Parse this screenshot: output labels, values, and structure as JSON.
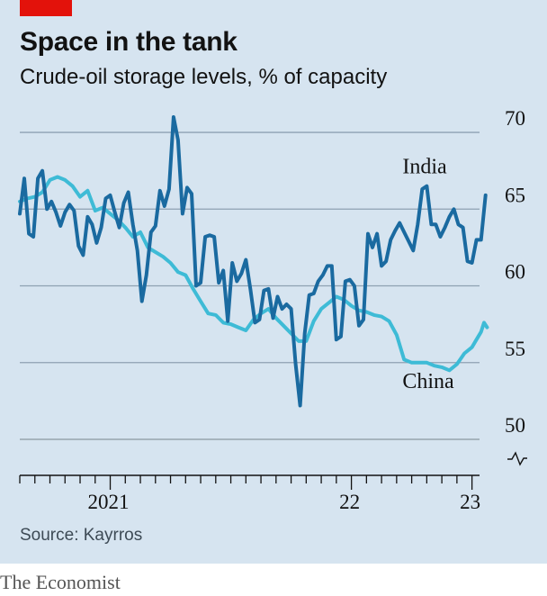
{
  "header": {
    "title": "Space in the tank",
    "subtitle": "Crude-oil storage levels, % of capacity"
  },
  "footer": {
    "source": "Source: Kayrros",
    "brand": "The Economist"
  },
  "colors": {
    "background": "#d6e4f0",
    "india": "#1a6aa0",
    "china": "#3ebbd6",
    "accent": "#e3120b"
  },
  "chart_data": {
    "type": "line",
    "x_unit": "month index since 2020-07",
    "xlim": [
      0,
      30.5
    ],
    "ylim": [
      50,
      71
    ],
    "y_ticks": [
      50,
      55,
      60,
      65,
      70
    ],
    "y_tick_labels": [
      "50",
      "55",
      "60",
      "65",
      "70"
    ],
    "x_tick_labels": [
      {
        "x": 6,
        "label": "2021"
      },
      {
        "x": 22,
        "label": "22"
      },
      {
        "x": 30,
        "label": "23"
      }
    ],
    "axis_break": true,
    "grid": "horizontal",
    "series": [
      {
        "name": "India",
        "label_at": [
          27,
          67.8
        ],
        "points": [
          [
            0,
            64.7
          ],
          [
            0.3,
            67
          ],
          [
            0.6,
            63.4
          ],
          [
            0.9,
            63.2
          ],
          [
            1.2,
            67
          ],
          [
            1.5,
            67.5
          ],
          [
            1.8,
            65
          ],
          [
            2.1,
            65.5
          ],
          [
            2.4,
            64.8
          ],
          [
            2.7,
            63.9
          ],
          [
            3.0,
            64.8
          ],
          [
            3.3,
            65.3
          ],
          [
            3.6,
            64.9
          ],
          [
            3.9,
            62.6
          ],
          [
            4.2,
            62
          ],
          [
            4.5,
            64.5
          ],
          [
            4.8,
            64
          ],
          [
            5.1,
            62.8
          ],
          [
            5.4,
            63.8
          ],
          [
            5.7,
            65.7
          ],
          [
            6.0,
            65.9
          ],
          [
            6.3,
            64.8
          ],
          [
            6.6,
            63.8
          ],
          [
            6.9,
            65.4
          ],
          [
            7.2,
            66.1
          ],
          [
            7.5,
            64
          ],
          [
            7.8,
            62.3
          ],
          [
            8.1,
            59
          ],
          [
            8.4,
            60.7
          ],
          [
            8.7,
            63.5
          ],
          [
            9.0,
            63.9
          ],
          [
            9.3,
            66.2
          ],
          [
            9.6,
            65.2
          ],
          [
            9.9,
            66.3
          ],
          [
            10.2,
            71
          ],
          [
            10.5,
            69.5
          ],
          [
            10.8,
            64.7
          ],
          [
            11.1,
            66.4
          ],
          [
            11.4,
            66
          ],
          [
            11.7,
            60
          ],
          [
            12.0,
            60.2
          ],
          [
            12.3,
            63.2
          ],
          [
            12.6,
            63.3
          ],
          [
            12.9,
            63.2
          ],
          [
            13.2,
            60.2
          ],
          [
            13.5,
            61
          ],
          [
            13.8,
            57.7
          ],
          [
            14.1,
            61.5
          ],
          [
            14.4,
            60.3
          ],
          [
            14.7,
            60.8
          ],
          [
            15.0,
            61.7
          ],
          [
            15.3,
            59.8
          ],
          [
            15.6,
            57.6
          ],
          [
            15.9,
            57.8
          ],
          [
            16.2,
            59.7
          ],
          [
            16.5,
            59.8
          ],
          [
            16.8,
            57.9
          ],
          [
            17.1,
            59.3
          ],
          [
            17.4,
            58.5
          ],
          [
            17.7,
            58.8
          ],
          [
            18.0,
            58.5
          ],
          [
            18.3,
            54.9
          ],
          [
            18.6,
            52.2
          ],
          [
            18.9,
            56.9
          ],
          [
            19.2,
            59.4
          ],
          [
            19.5,
            59.5
          ],
          [
            19.8,
            60.3
          ],
          [
            20.1,
            60.7
          ],
          [
            20.4,
            61.3
          ],
          [
            20.7,
            61.3
          ],
          [
            21.0,
            56.5
          ],
          [
            21.3,
            56.7
          ],
          [
            21.6,
            60.3
          ],
          [
            21.9,
            60.4
          ],
          [
            22.2,
            60
          ],
          [
            22.5,
            57.4
          ],
          [
            22.8,
            57.8
          ],
          [
            23.1,
            63.4
          ],
          [
            23.4,
            62.5
          ],
          [
            23.7,
            63.4
          ],
          [
            24.0,
            61.3
          ],
          [
            24.3,
            61.6
          ],
          [
            24.6,
            63
          ],
          [
            24.9,
            63.6
          ],
          [
            25.2,
            64.1
          ],
          [
            25.5,
            63.5
          ],
          [
            25.8,
            62.9
          ],
          [
            26.1,
            62.3
          ],
          [
            26.4,
            64
          ],
          [
            26.7,
            66.3
          ],
          [
            27.0,
            66.5
          ],
          [
            27.3,
            64
          ],
          [
            27.6,
            64
          ],
          [
            27.9,
            63.2
          ],
          [
            28.2,
            63.8
          ],
          [
            28.5,
            64.5
          ],
          [
            28.8,
            65
          ],
          [
            29.1,
            64
          ],
          [
            29.4,
            63.8
          ],
          [
            29.7,
            61.6
          ],
          [
            30.0,
            61.5
          ],
          [
            30.3,
            63
          ],
          [
            30.6,
            63
          ],
          [
            30.9,
            65.9
          ]
        ]
      },
      {
        "name": "China",
        "label_at": [
          27,
          53.8
        ],
        "points": [
          [
            0,
            65.5
          ],
          [
            0.5,
            65.7
          ],
          [
            1.0,
            65.8
          ],
          [
            1.5,
            66.1
          ],
          [
            2.0,
            66.9
          ],
          [
            2.5,
            67.1
          ],
          [
            3.0,
            66.9
          ],
          [
            3.5,
            66.5
          ],
          [
            4.0,
            65.8
          ],
          [
            4.5,
            66.2
          ],
          [
            5.0,
            64.9
          ],
          [
            5.5,
            65.1
          ],
          [
            6.0,
            64.7
          ],
          [
            6.5,
            64.3
          ],
          [
            7.0,
            63.8
          ],
          [
            7.5,
            63.2
          ],
          [
            8.0,
            63.5
          ],
          [
            8.5,
            62.5
          ],
          [
            9.0,
            62.2
          ],
          [
            9.5,
            61.9
          ],
          [
            10.0,
            61.5
          ],
          [
            10.5,
            60.9
          ],
          [
            11.0,
            60.7
          ],
          [
            11.5,
            59.8
          ],
          [
            12.0,
            59
          ],
          [
            12.5,
            58.2
          ],
          [
            13.0,
            58.1
          ],
          [
            13.5,
            57.6
          ],
          [
            14.0,
            57.5
          ],
          [
            14.5,
            57.3
          ],
          [
            15.0,
            57.1
          ],
          [
            15.5,
            57.8
          ],
          [
            16.0,
            58.2
          ],
          [
            16.5,
            58.5
          ],
          [
            17.0,
            57.9
          ],
          [
            17.5,
            57.4
          ],
          [
            18.0,
            56.9
          ],
          [
            18.5,
            56.4
          ],
          [
            19.0,
            56.4
          ],
          [
            19.5,
            57.7
          ],
          [
            20.0,
            58.5
          ],
          [
            20.5,
            58.9
          ],
          [
            21.0,
            59.3
          ],
          [
            21.5,
            59.1
          ],
          [
            22.0,
            58.7
          ],
          [
            22.5,
            58.4
          ],
          [
            23.0,
            58.3
          ],
          [
            23.5,
            58.1
          ],
          [
            24.0,
            58
          ],
          [
            24.5,
            57.7
          ],
          [
            25.0,
            56.8
          ],
          [
            25.5,
            55.2
          ],
          [
            26.0,
            55
          ],
          [
            26.5,
            55
          ],
          [
            27.0,
            55
          ],
          [
            27.5,
            54.8
          ],
          [
            28.0,
            54.7
          ],
          [
            28.5,
            54.5
          ],
          [
            29.0,
            54.9
          ],
          [
            29.5,
            55.6
          ],
          [
            30.0,
            56
          ],
          [
            30.3,
            56.5
          ],
          [
            30.6,
            57
          ],
          [
            30.8,
            57.6
          ],
          [
            31.0,
            57.3
          ]
        ]
      }
    ]
  }
}
